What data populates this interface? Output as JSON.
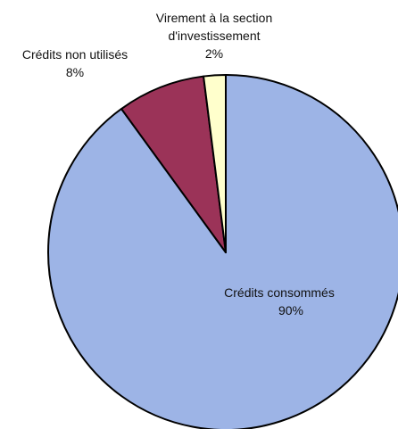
{
  "chart_data": {
    "type": "pie",
    "title": "",
    "legend": "none",
    "slices": [
      {
        "label": "Crédits consommés",
        "value": 90,
        "value_label": "90%",
        "color": "#9db4e6"
      },
      {
        "label": "Crédits non utilisés",
        "value": 8,
        "value_label": "8%",
        "color": "#9b3358"
      },
      {
        "label_lines": [
          "Virement à la section",
          "d'investissement"
        ],
        "value": 2,
        "value_label": "2%",
        "color": "#ffffcc"
      }
    ]
  }
}
